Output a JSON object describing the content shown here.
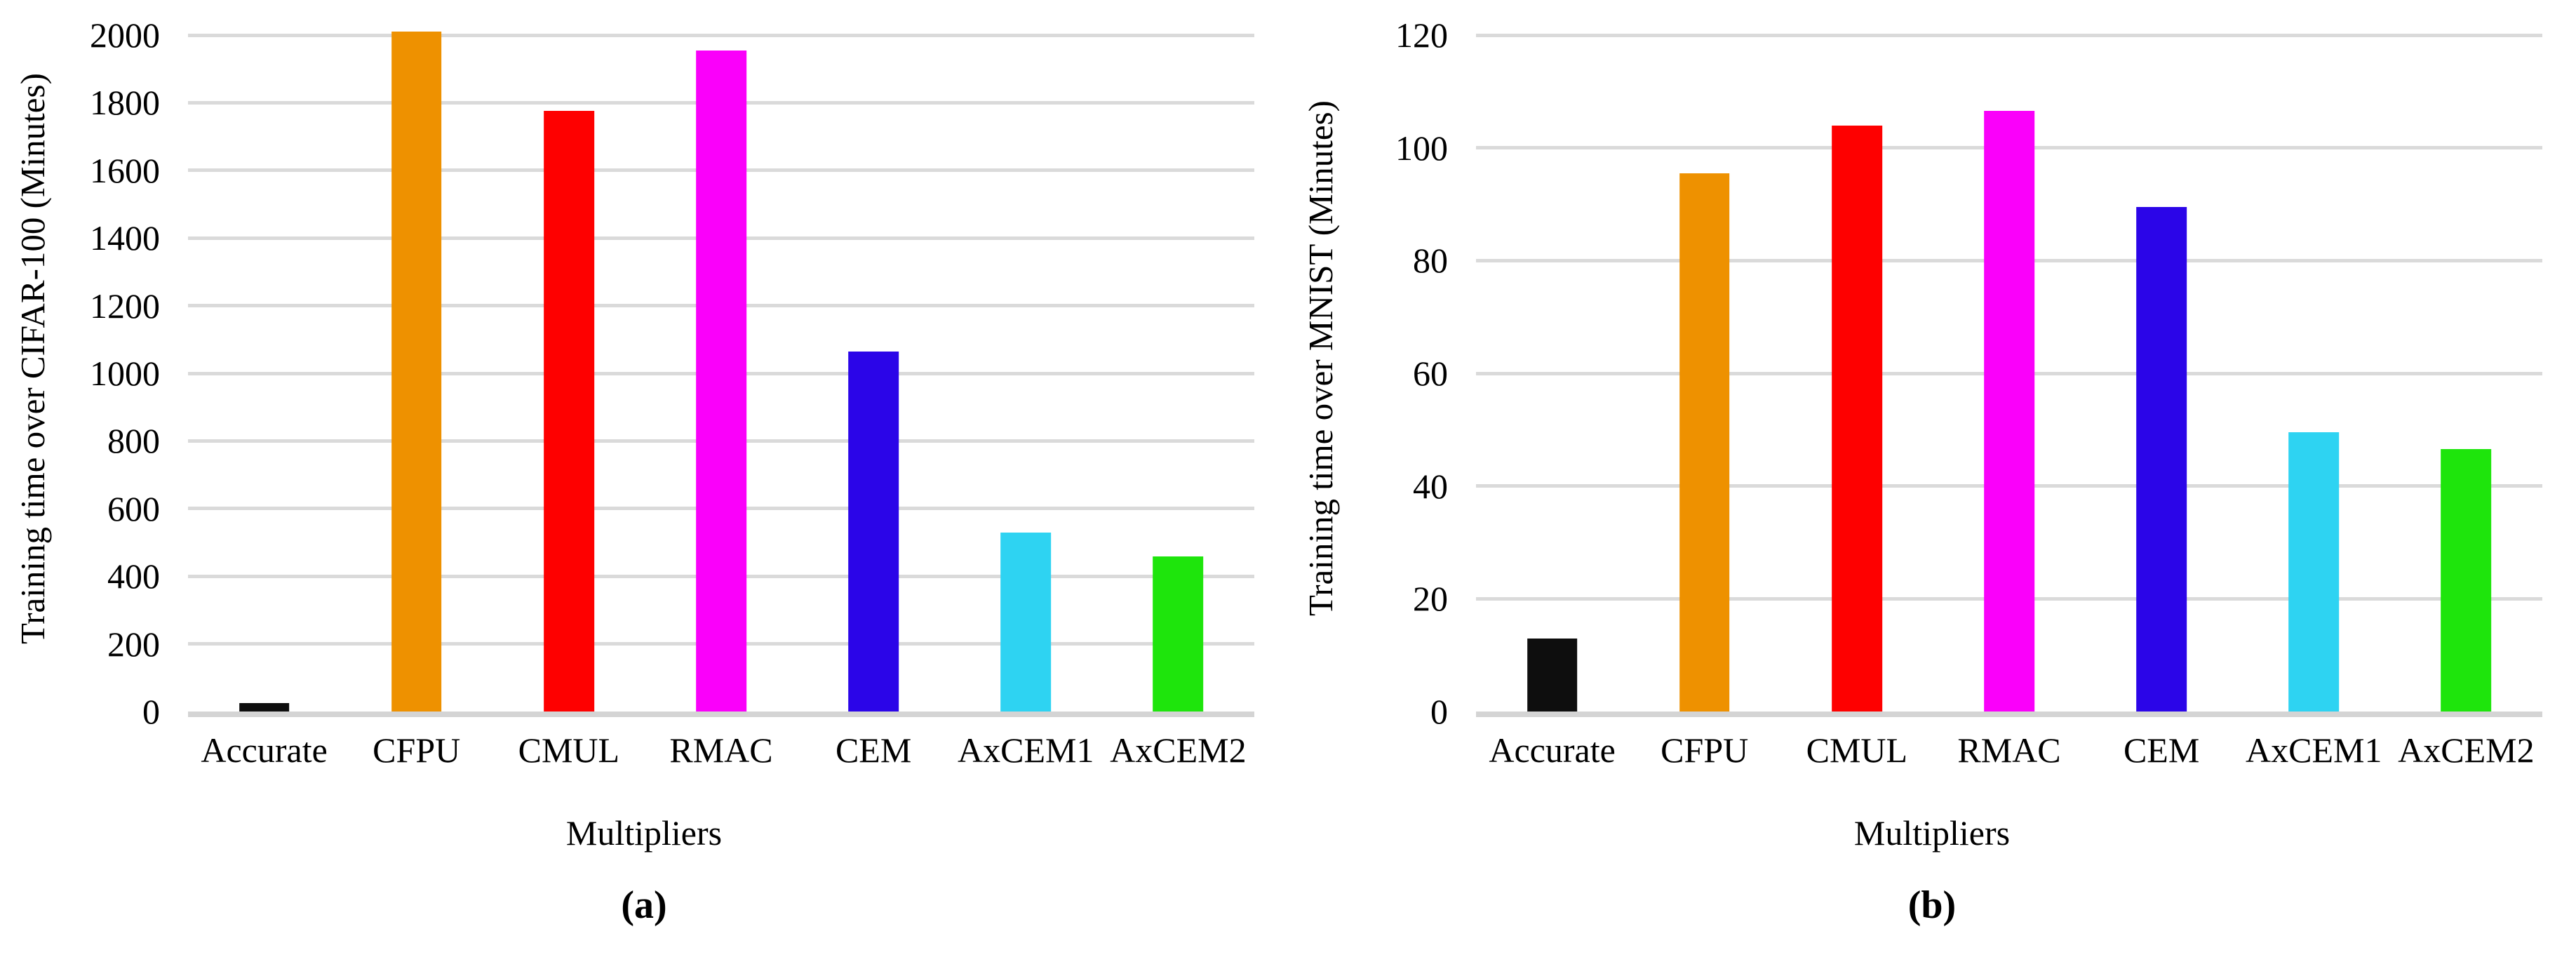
{
  "figure": {
    "description": "Two-panel bar chart figure comparing DNN training time for different approximate multipliers"
  },
  "style": {
    "background": "#FFFFFF",
    "text_color": "#000000",
    "gridline_color": "#DADADA",
    "baseline_color": "#D4D4D4"
  },
  "chart_data": [
    {
      "panel": "a",
      "type": "bar",
      "caption": "(a)",
      "title": "",
      "xlabel": "Multipliers",
      "ylabel": "Training time over CIFAR-100 (Minutes)",
      "categories": [
        "Accurate",
        "CFPU",
        "CMUL",
        "RMAC",
        "CEM",
        "AxCEM1",
        "AxCEM2"
      ],
      "values": [
        25,
        2010,
        1775,
        1955,
        1065,
        530,
        458
      ],
      "bar_colors": [
        "#0E0E0E",
        "#EE9100",
        "#FE0000",
        "#FA00FA",
        "#2B05E8",
        "#2ED3F2",
        "#1EE50C"
      ],
      "ylim": [
        0,
        2000
      ],
      "ytick_step": 200,
      "grid": true,
      "legend": false
    },
    {
      "panel": "b",
      "type": "bar",
      "caption": "(b)",
      "title": "",
      "xlabel": "Multipliers",
      "ylabel": "Training time over MNIST (Minutes)",
      "categories": [
        "Accurate",
        "CFPU",
        "CMUL",
        "RMAC",
        "CEM",
        "AxCEM1",
        "AxCEM2"
      ],
      "values": [
        13,
        95.5,
        104,
        106.5,
        89.5,
        49.5,
        46.5
      ],
      "bar_colors": [
        "#0E0E0E",
        "#EE9100",
        "#FE0000",
        "#FA00FA",
        "#2B05E8",
        "#2ED3F2",
        "#1EE50C"
      ],
      "ylim": [
        0,
        120
      ],
      "ytick_step": 20,
      "grid": true,
      "legend": false
    }
  ]
}
